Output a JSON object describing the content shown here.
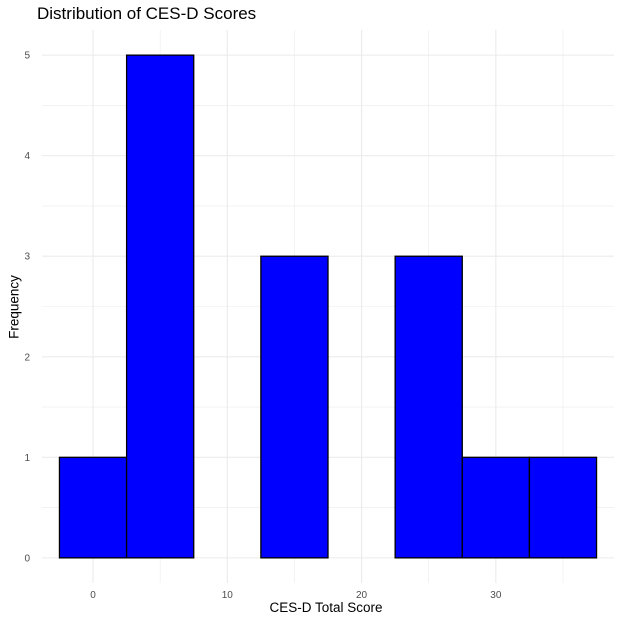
{
  "chart_data": {
    "type": "bar",
    "title": "Distribution of CES-D Scores",
    "xlabel": "CES-D Total Score",
    "ylabel": "Frequency",
    "bin_width": 5,
    "bins": [
      {
        "center": 0,
        "count": 1
      },
      {
        "center": 5,
        "count": 5
      },
      {
        "center": 10,
        "count": 0
      },
      {
        "center": 15,
        "count": 3
      },
      {
        "center": 20,
        "count": 0
      },
      {
        "center": 25,
        "count": 3
      },
      {
        "center": 30,
        "count": 1
      },
      {
        "center": 35,
        "count": 1
      }
    ],
    "xlim": [
      -3.8,
      38.8
    ],
    "ylim": [
      -0.25,
      5.25
    ],
    "x_ticks": [
      0,
      10,
      20,
      30
    ],
    "y_ticks": [
      0,
      1,
      2,
      3,
      4,
      5
    ],
    "grid": true,
    "bar_fill": "#0000ff",
    "bar_stroke": "#000000",
    "grid_color": "#ebebeb"
  }
}
